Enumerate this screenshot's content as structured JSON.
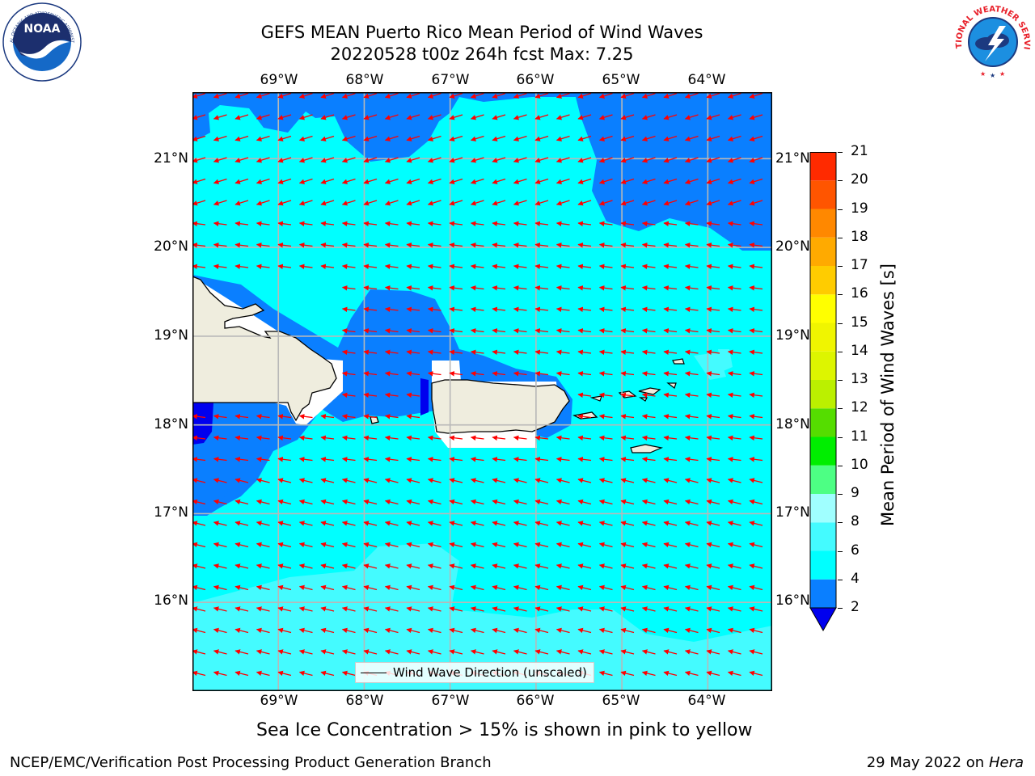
{
  "title_line1": "GEFS MEAN Puerto Rico Mean Period of Wind Waves",
  "title_line2": "20220528 t00z 264h fcst   Max: 7.25",
  "lon_ticks": [
    "69°W",
    "68°W",
    "67°W",
    "66°W",
    "65°W",
    "64°W"
  ],
  "lat_ticks": [
    "21°N",
    "20°N",
    "19°N",
    "18°N",
    "17°N",
    "16°N"
  ],
  "legend": "Wind Wave Direction (unscaled)",
  "caption": "Sea Ice Concentration > 15% is shown in pink to yellow",
  "footer_left": "NCEP/EMC/Verification Post Processing Product Generation Branch",
  "footer_right_date": "29 May 2022 on",
  "footer_right_host": "Hera",
  "colorbar": {
    "title": "Mean Period of Wind Waves [s]",
    "labels": [
      "21",
      "20",
      "19",
      "18",
      "17",
      "16",
      "15",
      "14",
      "13",
      "12",
      "11",
      "10",
      "9",
      "8",
      "6",
      "4",
      "2"
    ],
    "bins": [
      {
        "from": 2,
        "to": 4,
        "color": "#0a7fff"
      },
      {
        "from": 4,
        "to": 6,
        "color": "#00ffff"
      },
      {
        "from": 6,
        "to": 8,
        "color": "#44fbff"
      },
      {
        "from": 8,
        "to": 9,
        "color": "#a0ffff"
      },
      {
        "from": 9,
        "to": 10,
        "color": "#4dff84"
      },
      {
        "from": 10,
        "to": 11,
        "color": "#00ee00"
      },
      {
        "from": 11,
        "to": 12,
        "color": "#55dd00"
      },
      {
        "from": 12,
        "to": 13,
        "color": "#bbf000"
      },
      {
        "from": 13,
        "to": 14,
        "color": "#ddf500"
      },
      {
        "from": 14,
        "to": 15,
        "color": "#f0f500"
      },
      {
        "from": 15,
        "to": 16,
        "color": "#ffff00"
      },
      {
        "from": 16,
        "to": 17,
        "color": "#ffcc00"
      },
      {
        "from": 17,
        "to": 18,
        "color": "#ffaa00"
      },
      {
        "from": 18,
        "to": 19,
        "color": "#ff8800"
      },
      {
        "from": 19,
        "to": 20,
        "color": "#ff5500"
      },
      {
        "from": 20,
        "to": 21,
        "color": "#ff2a00"
      }
    ],
    "under_color": "#0000ee"
  },
  "map": {
    "lon_range": [
      -70,
      -63.25
    ],
    "lat_range": [
      15.0,
      21.75
    ],
    "arrow_color": "#ff0000",
    "land_color": "#efedde"
  },
  "logos": {
    "noaa_text": "NOAA",
    "noaa_ring": "NATIONAL OCEANIC AND ATMOSPHERIC ADMINISTRATION",
    "noaa_ring_bottom": "U.S. DEPARTMENT OF COMMERCE",
    "nws_ring": "NATIONAL WEATHER SERVICE"
  }
}
